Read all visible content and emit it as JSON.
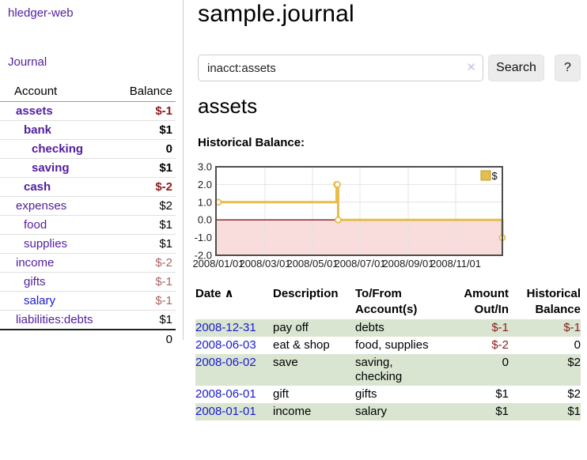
{
  "colors": {
    "link_purple": "#511e9e",
    "link_blue": "#1a1acd",
    "negative_strong": "#8b1c1c",
    "negative_soft": "#aa6565",
    "row_stripe_green": "#d9e5d1",
    "chart_line_gold": "#e7bd4b",
    "chart_negative_area": "#f9dcdc",
    "chart_zero_line": "#7d1b1b"
  },
  "sidebar": {
    "brand": "hledger-web",
    "journal_link": "Journal",
    "accounts_table": {
      "headers": {
        "account": "Account",
        "balance": "Balance"
      },
      "rows": [
        {
          "name": "assets",
          "depth": 1,
          "bold": true,
          "link_color": "purple",
          "balance": "$-1",
          "balance_class": "b-strong-neg"
        },
        {
          "name": "bank",
          "depth": 2,
          "bold": true,
          "link_color": "purple",
          "balance": "$1",
          "balance_class": "b-strong"
        },
        {
          "name": "checking",
          "depth": 3,
          "bold": true,
          "link_color": "purple",
          "balance": "0",
          "balance_class": "b-strong"
        },
        {
          "name": "saving",
          "depth": 3,
          "bold": true,
          "link_color": "purple",
          "balance": "$1",
          "balance_class": "b-strong"
        },
        {
          "name": "cash",
          "depth": 2,
          "bold": true,
          "link_color": "purple",
          "balance": "$-2",
          "balance_class": "b-strong-neg"
        },
        {
          "name": "expenses",
          "depth": 1,
          "bold": false,
          "link_color": "purple",
          "balance": "$2",
          "balance_class": "b-plain"
        },
        {
          "name": "food",
          "depth": 2,
          "bold": false,
          "link_color": "purple",
          "balance": "$1",
          "balance_class": "b-plain"
        },
        {
          "name": "supplies",
          "depth": 2,
          "bold": false,
          "link_color": "purple",
          "balance": "$1",
          "balance_class": "b-plain"
        },
        {
          "name": "income",
          "depth": 1,
          "bold": false,
          "link_color": "purple",
          "balance": "$-2",
          "balance_class": "b-soft-neg"
        },
        {
          "name": "gifts",
          "depth": 2,
          "bold": false,
          "link_color": "purple",
          "balance": "$-1",
          "balance_class": "b-soft-neg"
        },
        {
          "name": "salary",
          "depth": 2,
          "bold": false,
          "link_color": "blue",
          "balance": "$-1",
          "balance_class": "b-soft-neg"
        },
        {
          "name": "liabilities:debts",
          "depth": 1,
          "bold": false,
          "link_color": "purple",
          "balance": "$1",
          "balance_class": "b-plain"
        }
      ],
      "total": "0"
    }
  },
  "main": {
    "title": "sample.journal",
    "search": {
      "value": "inacct:assets",
      "clear_icon": "✕",
      "search_button": "Search",
      "help_button": "?"
    },
    "section_title": "assets",
    "chart_label": "Historical Balance:",
    "transactions": {
      "headers": {
        "date": "Date",
        "sort_indicator": "∧",
        "description": "Description",
        "accounts": "To/From Account(s)",
        "amount": "Amount Out/In",
        "balance": "Historical Balance"
      },
      "rows": [
        {
          "date": "2008-12-31",
          "description": "pay off",
          "accounts": "debts",
          "amount": "$-1",
          "amount_neg": true,
          "balance": "$-1",
          "balance_neg": true
        },
        {
          "date": "2008-06-03",
          "description": "eat & shop",
          "accounts": "food, supplies",
          "amount": "$-2",
          "amount_neg": true,
          "balance": "0",
          "balance_neg": false
        },
        {
          "date": "2008-06-02",
          "description": "save",
          "accounts": "saving, checking",
          "amount": "0",
          "amount_neg": false,
          "balance": "$2",
          "balance_neg": false
        },
        {
          "date": "2008-06-01",
          "description": "gift",
          "accounts": "gifts",
          "amount": "$1",
          "amount_neg": false,
          "balance": "$2",
          "balance_neg": false
        },
        {
          "date": "2008-01-01",
          "description": "income",
          "accounts": "salary",
          "amount": "$1",
          "amount_neg": false,
          "balance": "$1",
          "balance_neg": false
        }
      ]
    }
  },
  "chart_data": {
    "type": "line",
    "subtype": "step-after",
    "title": "Historical Balance",
    "ylim": [
      -2,
      3
    ],
    "x_range_days": [
      0,
      365
    ],
    "y_ticks": [
      "3.0",
      "2.0",
      "1.0",
      "0.0",
      "-1.0",
      "-2.0"
    ],
    "x_ticks": [
      {
        "label": "2008/01/01",
        "day": 0
      },
      {
        "label": "2008/03/01",
        "day": 60
      },
      {
        "label": "2008/05/01",
        "day": 121
      },
      {
        "label": "2008/07/01",
        "day": 182
      },
      {
        "label": "2008/09/01",
        "day": 244
      },
      {
        "label": "2008/11/01",
        "day": 305
      }
    ],
    "grid": true,
    "legend": {
      "label": "$",
      "position": "top-right"
    },
    "negative_region_fill": "#f9dcdc",
    "zero_line_color": "#7d1b1b",
    "series": [
      {
        "name": "$",
        "color": "#e7bd4b",
        "points": [
          {
            "date": "2008-01-01",
            "day": 0,
            "value": 1
          },
          {
            "date": "2008-06-01",
            "day": 152,
            "value": 2
          },
          {
            "date": "2008-06-02",
            "day": 153,
            "value": 2
          },
          {
            "date": "2008-06-03",
            "day": 154,
            "value": 0
          },
          {
            "date": "2008-12-31",
            "day": 365,
            "value": -1
          }
        ]
      }
    ]
  }
}
